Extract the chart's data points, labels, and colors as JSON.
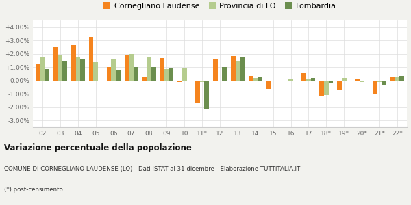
{
  "years": [
    "02",
    "03",
    "04",
    "05",
    "06",
    "07",
    "08",
    "09",
    "10",
    "11*",
    "12",
    "13",
    "14",
    "15",
    "16",
    "17",
    "18*",
    "19*",
    "20*",
    "21*",
    "22*"
  ],
  "cornegliano": [
    1.2,
    2.5,
    2.65,
    3.25,
    1.0,
    1.95,
    0.25,
    1.7,
    -0.1,
    -1.7,
    1.6,
    1.85,
    0.35,
    -0.65,
    -0.05,
    0.55,
    -1.15,
    -0.7,
    0.15,
    -1.0,
    0.25
  ],
  "provincia": [
    1.75,
    1.95,
    1.75,
    1.35,
    1.6,
    2.0,
    1.75,
    0.85,
    0.9,
    -0.1,
    0.0,
    1.45,
    0.2,
    0.0,
    0.1,
    0.15,
    -1.1,
    0.2,
    -0.1,
    -0.1,
    0.3
  ],
  "lombardia": [
    0.85,
    1.5,
    1.6,
    0.0,
    0.75,
    1.0,
    1.0,
    0.9,
    0.0,
    -2.1,
    1.0,
    1.75,
    0.25,
    0.0,
    0.0,
    0.2,
    -0.2,
    0.0,
    0.0,
    -0.3,
    0.35
  ],
  "color_cornegliano": "#f5841e",
  "color_provincia": "#b5cc8e",
  "color_lombardia": "#6b8e4e",
  "title": "Variazione percentuale della popolazione",
  "subtitle": "COMUNE DI CORNEGLIANO LAUDENSE (LO) - Dati ISTAT al 31 dicembre - Elaborazione TUTTITALIA.IT",
  "footnote": "(*) post-censimento",
  "ylim": [
    -3.5,
    4.5
  ],
  "yticks": [
    -3.0,
    -2.0,
    -1.0,
    0.0,
    1.0,
    2.0,
    3.0,
    4.0
  ],
  "ytick_labels": [
    "-3.00%",
    "-2.00%",
    "-1.00%",
    "0.00%",
    "+1.00%",
    "+2.00%",
    "+3.00%",
    "+4.00%"
  ],
  "legend_labels": [
    "Cornegliano Laudense",
    "Provincia di LO",
    "Lombardia"
  ],
  "bg_color": "#f2f2ee",
  "plot_bg_color": "#ffffff"
}
